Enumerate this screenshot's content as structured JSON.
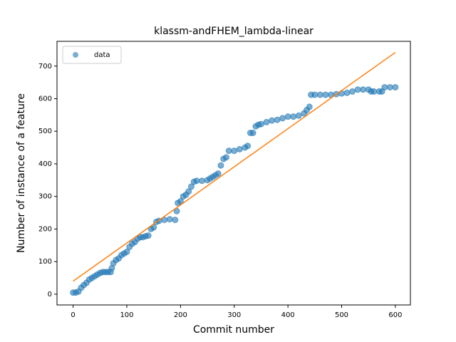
{
  "chart_data": {
    "type": "scatter",
    "title": "klassm-andFHEM_lambda-linear",
    "x_label": "Commit number",
    "y_label": "Number of instance of a feature",
    "xlim": [
      -30,
      628
    ],
    "ylim": [
      -33,
      776
    ],
    "xticks": [
      0,
      100,
      200,
      300,
      400,
      500,
      600
    ],
    "yticks": [
      0,
      100,
      200,
      300,
      400,
      500,
      600,
      700
    ],
    "legend": "upper left",
    "series": [
      {
        "name": "data",
        "color": "#1f77b4",
        "x": [
          0,
          5,
          10,
          15,
          20,
          25,
          30,
          35,
          40,
          45,
          50,
          55,
          60,
          65,
          70,
          72,
          75,
          80,
          85,
          90,
          95,
          100,
          105,
          110,
          115,
          120,
          125,
          130,
          135,
          140,
          145,
          150,
          155,
          160,
          170,
          180,
          190,
          193,
          195,
          200,
          205,
          210,
          215,
          220,
          225,
          230,
          240,
          250,
          255,
          260,
          265,
          270,
          275,
          280,
          285,
          290,
          300,
          310,
          320,
          325,
          330,
          335,
          340,
          345,
          350,
          360,
          370,
          380,
          390,
          400,
          410,
          420,
          430,
          435,
          440,
          443,
          450,
          460,
          470,
          480,
          490,
          500,
          510,
          520,
          530,
          540,
          550,
          555,
          560,
          570,
          575,
          580,
          590,
          600
        ],
        "values": [
          5,
          5,
          8,
          20,
          28,
          35,
          45,
          50,
          55,
          60,
          65,
          68,
          68,
          68,
          68,
          80,
          95,
          105,
          110,
          120,
          125,
          130,
          145,
          155,
          160,
          170,
          175,
          175,
          178,
          180,
          200,
          205,
          222,
          225,
          228,
          230,
          228,
          255,
          280,
          285,
          300,
          305,
          315,
          330,
          345,
          348,
          348,
          350,
          355,
          360,
          365,
          370,
          395,
          415,
          420,
          440,
          440,
          445,
          450,
          455,
          495,
          495,
          515,
          520,
          522,
          528,
          533,
          535,
          540,
          545,
          545,
          548,
          555,
          565,
          575,
          612,
          612,
          612,
          612,
          612,
          614,
          616,
          618,
          622,
          628,
          628,
          628,
          622,
          622,
          622,
          622,
          635,
          635,
          635
        ]
      }
    ],
    "fit_line": {
      "color": "#ff7f0e",
      "x": [
        0,
        600
      ],
      "values": [
        40,
        742
      ]
    }
  }
}
